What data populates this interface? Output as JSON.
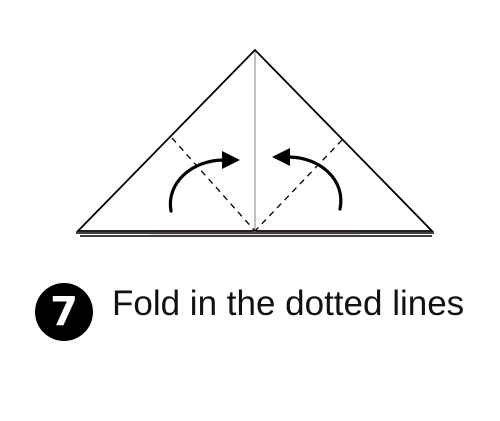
{
  "step": {
    "number": "7",
    "instruction": "Fold in the dotted lines"
  },
  "colors": {
    "line": "#000000",
    "center_crease": "#9a9a9a",
    "paper_edge_accent": "#d07aa8",
    "badge_background": "#000000",
    "badge_text": "#ffffff"
  },
  "diagram": {
    "shape": "triangle",
    "fold_lines": "dashed",
    "arrows": [
      "curved-arrow-left-to-center",
      "curved-arrow-right-to-center"
    ]
  }
}
